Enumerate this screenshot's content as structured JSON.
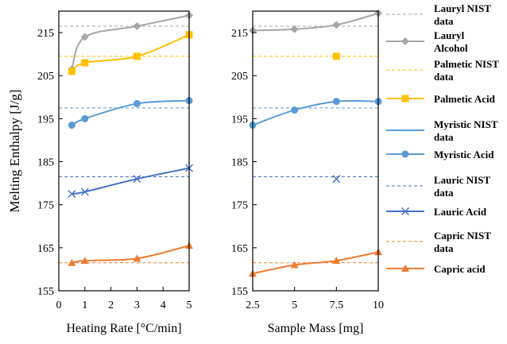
{
  "chart_data": [
    {
      "type": "line",
      "xlabel": "Heating Rate [°C/min]",
      "ylabel": "Melting Enthalpy [J/g]",
      "xlim": [
        0,
        5
      ],
      "ylim": [
        155,
        220
      ],
      "xticks": [
        0,
        1,
        2,
        3,
        4,
        5
      ],
      "yticks": [
        155,
        165,
        175,
        185,
        195,
        205,
        215
      ],
      "grid": false,
      "series": [
        {
          "name": "Lauryl Alcohol",
          "color": "#a6a6a6",
          "marker": "diamond",
          "x": [
            0.5,
            1,
            3,
            5
          ],
          "y": [
            206.5,
            214,
            216.5,
            219
          ]
        },
        {
          "name": "Palmetic Acid",
          "color": "#ffc000",
          "marker": "square",
          "x": [
            0.5,
            1,
            3,
            5
          ],
          "y": [
            206,
            208,
            209.5,
            214.5
          ]
        },
        {
          "name": "Myristic Acid",
          "color": "#5b9bd5",
          "marker": "circle",
          "x": [
            0.5,
            1,
            3,
            5
          ],
          "y": [
            193.5,
            195,
            198.5,
            199.2
          ]
        },
        {
          "name": "Lauric Acid",
          "color": "#4472c4",
          "marker": "x",
          "x": [
            0.5,
            1,
            3,
            5
          ],
          "y": [
            177.5,
            178,
            181,
            183.5
          ]
        },
        {
          "name": "Capric acid",
          "color": "#ed7d31",
          "marker": "triangle",
          "x": [
            0.5,
            1,
            3,
            5
          ],
          "y": [
            161.5,
            162,
            162.5,
            165.5
          ]
        }
      ],
      "reference_lines": [
        {
          "name": "Lauryl NIST data",
          "color": "#a6a6a6",
          "y": 216.5
        },
        {
          "name": "Palmetic NIST data",
          "color": "#ffc000",
          "y": 209.5
        },
        {
          "name": "Myristic NIST data",
          "color": "#5b9bd5",
          "y": 197.5
        },
        {
          "name": "Lauric  NIST data",
          "color": "#4472c4",
          "y": 181.5
        },
        {
          "name": "Capric NIST data",
          "color": "#ed7d31",
          "y": 161.5
        }
      ]
    },
    {
      "type": "line",
      "xlabel": "Sample Mass [mg]",
      "ylabel": "",
      "xlim": [
        2.5,
        10
      ],
      "ylim": [
        155,
        220
      ],
      "xticks": [
        2.5,
        5,
        7.5,
        10
      ],
      "yticks": [
        155,
        165,
        175,
        185,
        195,
        205,
        215
      ],
      "grid": false,
      "series": [
        {
          "name": "Lauryl Alcohol",
          "color": "#a6a6a6",
          "marker": "diamond",
          "x": [
            2.5,
            5,
            7.5,
            10
          ],
          "y": [
            215.5,
            215.8,
            216.8,
            219.5
          ]
        },
        {
          "name": "Palmetic Acid",
          "color": "#ffc000",
          "marker": "square",
          "x": [
            7.5
          ],
          "y": [
            209.5
          ]
        },
        {
          "name": "Myristic Acid",
          "color": "#5b9bd5",
          "marker": "circle",
          "x": [
            2.5,
            5,
            7.5,
            10
          ],
          "y": [
            193.5,
            197,
            199,
            199
          ]
        },
        {
          "name": "Lauric Acid",
          "color": "#4472c4",
          "marker": "x",
          "x": [
            7.5
          ],
          "y": [
            181
          ]
        },
        {
          "name": "Capric acid",
          "color": "#ed7d31",
          "marker": "triangle",
          "x": [
            2.5,
            5,
            7.5,
            10
          ],
          "y": [
            159,
            161,
            162,
            164
          ]
        }
      ],
      "reference_lines": [
        {
          "name": "Lauryl NIST data",
          "color": "#a6a6a6",
          "y": 216.5
        },
        {
          "name": "Palmetic NIST data",
          "color": "#ffc000",
          "y": 209.5
        },
        {
          "name": "Myristic NIST data",
          "color": "#5b9bd5",
          "y": 197.5
        },
        {
          "name": "Lauric  NIST data",
          "color": "#4472c4",
          "y": 181.5
        },
        {
          "name": "Capric NIST data",
          "color": "#ed7d31",
          "y": 161.5
        }
      ]
    }
  ],
  "legend": {
    "placement": "right",
    "entries": [
      {
        "label_lines": [
          "Lauryl NIST",
          "data"
        ],
        "style": "dashed",
        "marker": "none",
        "color": "#a6a6a6"
      },
      {
        "label_lines": [
          "Lauryl",
          "Alcohol"
        ],
        "style": "solid",
        "marker": "diamond",
        "color": "#a6a6a6"
      },
      {
        "label_lines": [
          "Palmetic NIST",
          "data"
        ],
        "style": "dashed",
        "marker": "none",
        "color": "#ffc000"
      },
      {
        "label_lines": [
          "Palmetic Acid"
        ],
        "style": "solid",
        "marker": "square",
        "color": "#ffc000"
      },
      {
        "label_lines": [
          "Myristic NIST",
          "data"
        ],
        "style": "solid",
        "marker": "none",
        "color": "#5b9bd5"
      },
      {
        "label_lines": [
          "Myristic Acid"
        ],
        "style": "solid",
        "marker": "circle",
        "color": "#5b9bd5"
      },
      {
        "label_lines": [
          "Lauric  NIST",
          "data"
        ],
        "style": "dashed",
        "marker": "none",
        "color": "#4472c4"
      },
      {
        "label_lines": [
          "Lauric Acid"
        ],
        "style": "solid",
        "marker": "x",
        "color": "#4472c4"
      },
      {
        "label_lines": [
          "Capric NIST",
          "data"
        ],
        "style": "dashed",
        "marker": "none",
        "color": "#ed7d31"
      },
      {
        "label_lines": [
          "Capric acid"
        ],
        "style": "solid",
        "marker": "triangle",
        "color": "#ed7d31"
      }
    ]
  }
}
